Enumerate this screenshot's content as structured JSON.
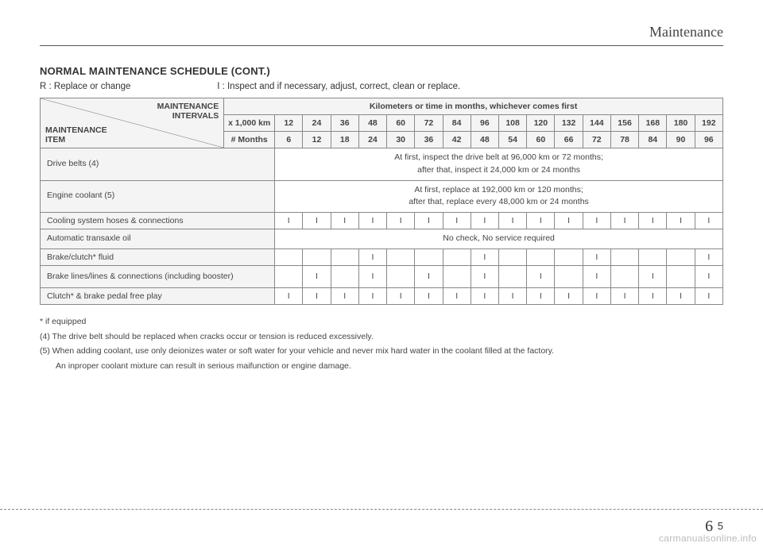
{
  "header": {
    "section": "Maintenance"
  },
  "title": "NORMAL MAINTENANCE SCHEDULE (CONT.)",
  "legend": {
    "r": "R : Replace or change",
    "i": "I : Inspect and if necessary, adjust, correct, clean or replace."
  },
  "table": {
    "diag_upper_l1": "MAINTENANCE",
    "diag_upper_l2": "INTERVALS",
    "diag_lower_l1": "MAINTENANCE",
    "diag_lower_l2": "ITEM",
    "top_header": "Kilometers or time in months, whichever comes first",
    "unit_km": "x 1,000 km",
    "unit_mo": "# Months",
    "km": [
      "12",
      "24",
      "36",
      "48",
      "60",
      "72",
      "84",
      "96",
      "108",
      "120",
      "132",
      "144",
      "156",
      "168",
      "180",
      "192"
    ],
    "mo": [
      "6",
      "12",
      "18",
      "24",
      "30",
      "36",
      "42",
      "48",
      "54",
      "60",
      "66",
      "72",
      "78",
      "84",
      "90",
      "96"
    ],
    "rows": [
      {
        "label": "Drive belts (4)",
        "span_text_l1": "At first, inspect the drive belt at 96,000 km or 72 months;",
        "span_text_l2": "after that, inspect it 24,000 km or 24 months"
      },
      {
        "label": "Engine coolant (5)",
        "span_text_l1": "At first, replace at 192,000 km or 120 months;",
        "span_text_l2": "after that, replace every 48,000 km or 24 months"
      },
      {
        "label": "Cooling system hoses & connections",
        "cells": [
          "I",
          "I",
          "I",
          "I",
          "I",
          "I",
          "I",
          "I",
          "I",
          "I",
          "I",
          "I",
          "I",
          "I",
          "I",
          "I"
        ]
      },
      {
        "label": "Automatic transaxle oil",
        "span_text_l1": "No check, No service required"
      },
      {
        "label": "Brake/clutch* fluid",
        "cells": [
          "",
          "",
          "",
          "I",
          "",
          "",
          "",
          "I",
          "",
          "",
          "",
          "I",
          "",
          "",
          "",
          "I"
        ]
      },
      {
        "label": "Brake lines/lines & connections (including booster)",
        "cells": [
          "",
          "I",
          "",
          "I",
          "",
          "I",
          "",
          "I",
          "",
          "I",
          "",
          "I",
          "",
          "I",
          "",
          "I"
        ]
      },
      {
        "label": "Clutch* & brake pedal free play",
        "cells": [
          "I",
          "I",
          "I",
          "I",
          "I",
          "I",
          "I",
          "I",
          "I",
          "I",
          "I",
          "I",
          "I",
          "I",
          "I",
          "I"
        ]
      }
    ]
  },
  "notes": {
    "n1": "* if equipped",
    "n2": "(4) The drive belt should be replaced when cracks occur or tension is reduced excessively.",
    "n3a": "(5) When adding coolant, use only deionizes water or soft water for your vehicle and never mix hard water in the coolant filled at the factory.",
    "n3b": "An inproper coolant mixture can result in serious maifunction or engine damage."
  },
  "page_num": {
    "chapter": "6",
    "page": "5"
  },
  "watermark": "carmanualsonline.info",
  "colors": {
    "text": "#333333",
    "border": "#888888",
    "header_bg": "#f4f4f4",
    "watermark": "#bbbbbb"
  }
}
